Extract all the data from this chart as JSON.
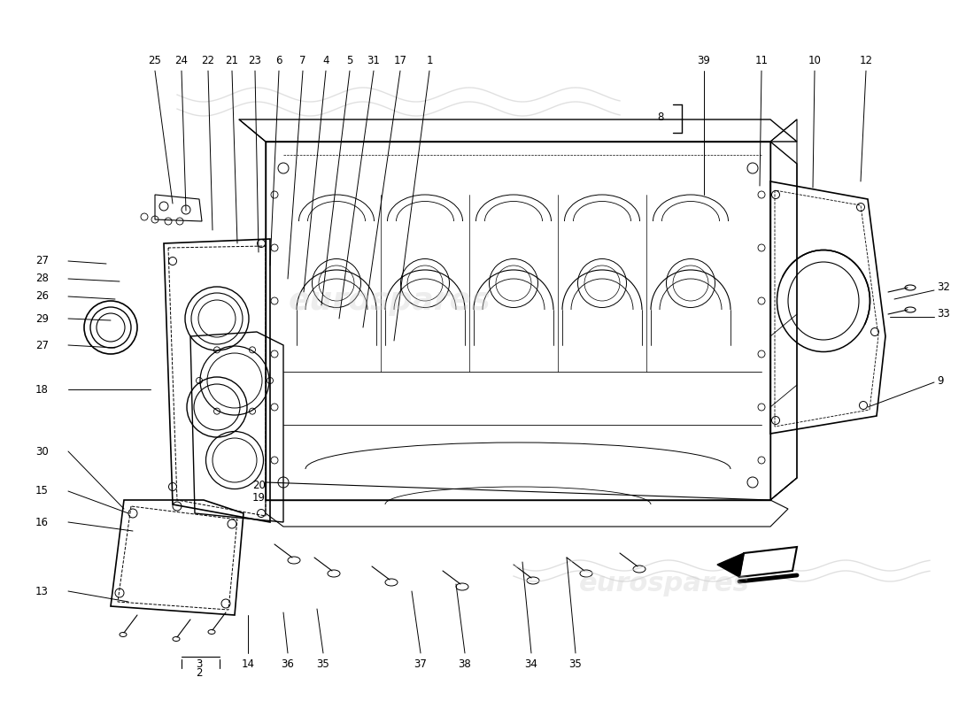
{
  "bg_color": "#ffffff",
  "line_color": "#000000",
  "watermark_color": "#cccccc",
  "label_fontsize": 8.5,
  "top_labels": [
    "25",
    "24",
    "22",
    "21",
    "23",
    "6",
    "7",
    "4",
    "5",
    "31",
    "17",
    "1"
  ],
  "right_top_labels": [
    "39",
    "11",
    "10",
    "12"
  ],
  "right_labels": [
    "32",
    "33",
    "9"
  ],
  "left_labels": [
    "27",
    "28",
    "26",
    "29",
    "27",
    "18",
    "30",
    "15",
    "16",
    "13"
  ],
  "bottom_labels": [
    "14",
    "36",
    "35",
    "37",
    "38",
    "34",
    "35"
  ],
  "frac_top": "3",
  "frac_bot": "2",
  "inner_labels": [
    "20",
    "19"
  ],
  "bracket_label": "8"
}
